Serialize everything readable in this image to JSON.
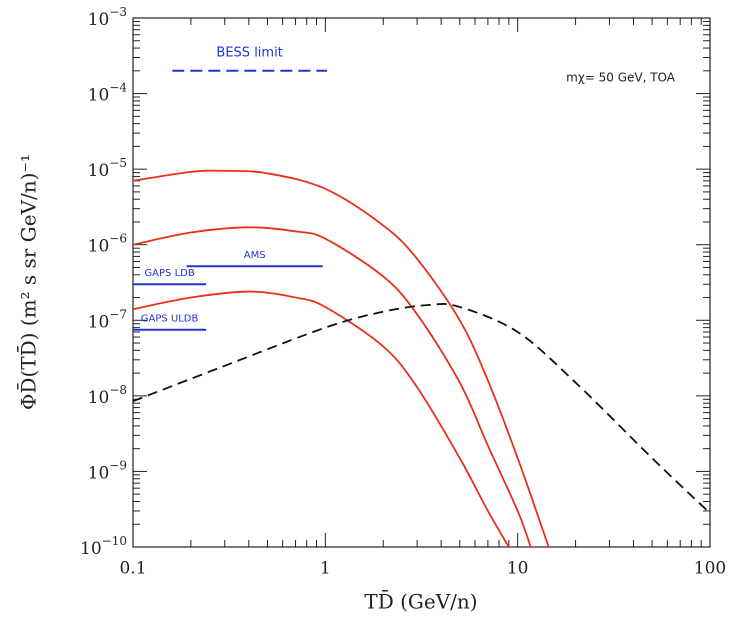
{
  "chart_data": {
    "type": "line",
    "x_label": "TD̄   (GeV/n)",
    "y_label": "ΦD̄(TD̄)   (m² s sr GeV/n)⁻¹",
    "annotation": "mχ= 50 GeV, TOA",
    "xscale": "log",
    "yscale": "log",
    "xlim": [
      0.1,
      100
    ],
    "ylim": [
      1e-10,
      0.001
    ],
    "xticks": [
      0.1,
      1,
      10,
      100
    ],
    "yticks": [
      {
        "value": 1e-10,
        "label": "10−10"
      },
      {
        "value": 1e-09,
        "label": "10−9"
      },
      {
        "value": 1e-08,
        "label": "10−8"
      },
      {
        "value": 1e-07,
        "label": "10−7"
      },
      {
        "value": 1e-06,
        "label": "10−6"
      },
      {
        "value": 1e-05,
        "label": "10−5"
      },
      {
        "value": 0.0001,
        "label": "10−4"
      },
      {
        "value": 0.001,
        "label": "10−3"
      }
    ],
    "series": [
      {
        "color": "#e8301c",
        "dashed": false,
        "x": [
          0.1,
          0.2,
          0.3,
          0.5,
          1,
          2,
          3,
          5,
          7,
          10,
          14.5
        ],
        "values": [
          7e-06,
          9.2e-06,
          9.5e-06,
          8.8e-06,
          5.5e-06,
          1.8e-06,
          6.5e-07,
          1e-07,
          1.6e-08,
          1.5e-09,
          1e-10
        ]
      },
      {
        "color": "#e8301c",
        "dashed": false,
        "x": [
          0.1,
          0.2,
          0.4,
          0.7,
          1,
          2,
          3,
          5,
          7,
          10,
          11.7
        ],
        "values": [
          1e-06,
          1.45e-06,
          1.7e-06,
          1.5e-06,
          1.2e-06,
          3.8e-07,
          1.2e-07,
          1.5e-08,
          2.2e-09,
          3e-10,
          1e-10
        ]
      },
      {
        "color": "#e8301c",
        "dashed": false,
        "x": [
          0.1,
          0.2,
          0.4,
          0.7,
          1,
          2,
          3,
          5,
          7,
          9
        ],
        "values": [
          1.4e-07,
          2e-07,
          2.4e-07,
          2e-07,
          1.5e-07,
          4.5e-08,
          1.3e-08,
          1.5e-09,
          3e-10,
          1e-10
        ]
      },
      {
        "color": "#111111",
        "dashed": true,
        "x": [
          0.1,
          0.3,
          1,
          2,
          3.5,
          5,
          10,
          20,
          50,
          100
        ],
        "values": [
          8.5e-09,
          2.5e-08,
          8e-08,
          1.3e-07,
          1.6e-07,
          1.5e-07,
          7e-08,
          1.5e-08,
          1.5e-09,
          2.8e-10
        ]
      },
      {
        "name": "BESS limit",
        "color": "#2233dd",
        "dashed": true,
        "x": [
          0.16,
          1.02
        ],
        "values": [
          0.0002,
          0.0002
        ]
      },
      {
        "name": "AMS",
        "color": "#2233dd",
        "dashed": false,
        "x": [
          0.19,
          0.97
        ],
        "values": [
          5.2e-07,
          5.2e-07
        ]
      },
      {
        "name": "GAPS LDB",
        "color": "#2233dd",
        "dashed": false,
        "x": [
          0.1,
          0.24
        ],
        "values": [
          3e-07,
          3e-07
        ]
      },
      {
        "name": "GAPS ULDB",
        "color": "#2233dd",
        "dashed": false,
        "x": [
          0.1,
          0.24
        ],
        "values": [
          7.5e-08,
          7.5e-08
        ]
      }
    ]
  }
}
